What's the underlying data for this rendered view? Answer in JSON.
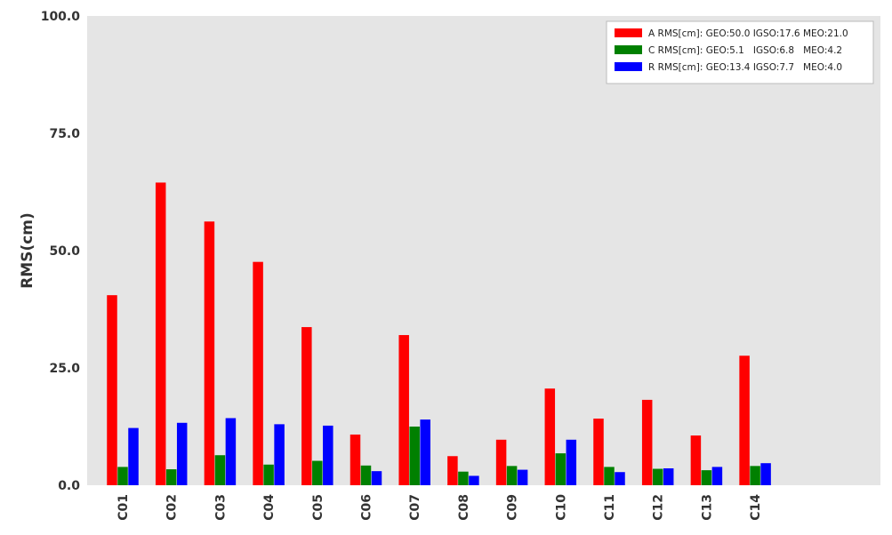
{
  "chart_data": {
    "type": "bar",
    "title": "",
    "xlabel": "",
    "ylabel": "RMS(cm)",
    "ylim": [
      0,
      100
    ],
    "yticks": [
      "0.0",
      "25.0",
      "50.0",
      "75.0",
      "100.0"
    ],
    "grid": false,
    "legend_position": "top-right",
    "background_color": "#e5e5e5",
    "categories": [
      "C01",
      "C02",
      "C03",
      "C04",
      "C05",
      "C06",
      "C07",
      "C08",
      "C09",
      "C10",
      "C11",
      "C12",
      "C13",
      "C14"
    ],
    "series": [
      {
        "name": "A RMS[cm]: GEO:50.0 IGSO:17.6 MEO:21.0",
        "color": "#ff0000",
        "values": [
          40.5,
          64.5,
          56.2,
          47.6,
          33.7,
          10.8,
          32.0,
          6.2,
          9.7,
          20.6,
          14.2,
          18.2,
          10.6,
          27.6
        ]
      },
      {
        "name": "C RMS[cm]: GEO:5.1   IGSO:6.8   MEO:4.2",
        "color": "#008000",
        "values": [
          3.9,
          3.4,
          6.4,
          4.4,
          5.2,
          4.2,
          12.5,
          2.9,
          4.1,
          6.8,
          3.9,
          3.5,
          3.2,
          4.1
        ]
      },
      {
        "name": "R RMS[cm]: GEO:13.4 IGSO:7.7   MEO:4.0",
        "color": "#0000ff",
        "values": [
          12.2,
          13.3,
          14.3,
          13.0,
          12.7,
          3.0,
          14.0,
          2.0,
          3.3,
          9.7,
          2.8,
          3.6,
          3.9,
          4.7
        ]
      }
    ]
  }
}
